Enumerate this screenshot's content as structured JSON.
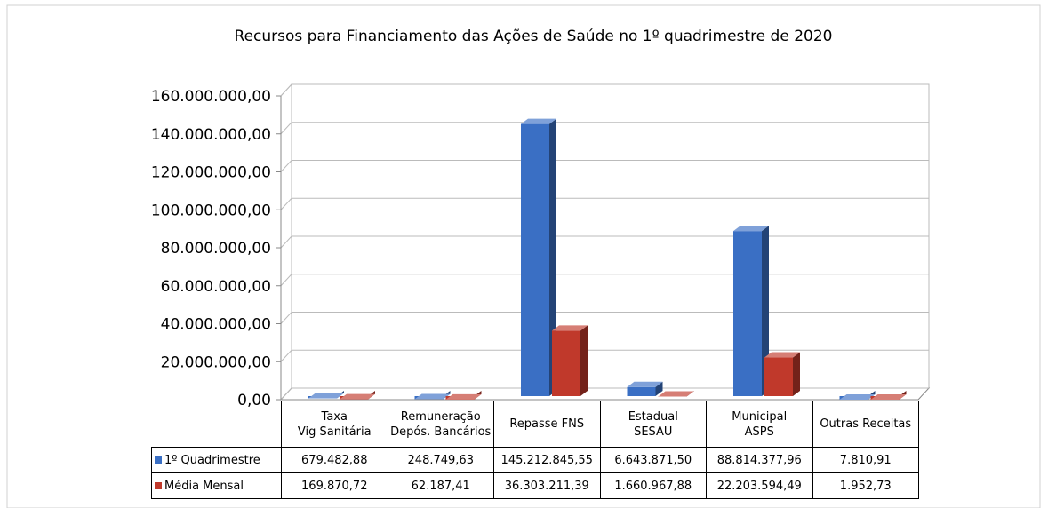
{
  "chart_data": {
    "type": "bar3d",
    "title": "Recursos para Financiamento das Ações de Saúde no 1º quadrimestre de 2020",
    "categories": [
      "Taxa\nVig Sanitária",
      "Remuneração\nDepós. Bancários",
      "Repasse FNS",
      "Estadual\nSESAU",
      "Municipal\nASPS",
      "Outras Receitas"
    ],
    "series": [
      {
        "name": "1º Quadrimestre",
        "color": "#3a6fc4",
        "values": [
          679482.88,
          248749.63,
          145212845.55,
          6643871.5,
          88814377.96,
          7810.91
        ],
        "value_labels": [
          "679.482,88",
          "248.749,63",
          "145.212.845,55",
          "6.643.871,50",
          "88.814.377,96",
          "7.810,91"
        ]
      },
      {
        "name": "Média Mensal",
        "color": "#c0392b",
        "values": [
          169870.72,
          62187.41,
          36303211.39,
          1660967.88,
          22203594.49,
          1952.73
        ],
        "value_labels": [
          "169.870,72",
          "62.187,41",
          "36.303.211,39",
          "1.660.967,88",
          "22.203.594,49",
          "1.952,73"
        ]
      }
    ],
    "ylim": [
      0,
      160000000
    ],
    "yticks": [
      {
        "value": 0,
        "label": "0,00"
      },
      {
        "value": 20000000,
        "label": "20.000.000,00"
      },
      {
        "value": 40000000,
        "label": "40.000.000,00"
      },
      {
        "value": 60000000,
        "label": "60.000.000,00"
      },
      {
        "value": 80000000,
        "label": "80.000.000,00"
      },
      {
        "value": 100000000,
        "label": "100.000.000,00"
      },
      {
        "value": 120000000,
        "label": "120.000.000,00"
      },
      {
        "value": 140000000,
        "label": "140.000.000,00"
      },
      {
        "value": 160000000,
        "label": "160.000.000,00"
      }
    ],
    "grid": true
  }
}
